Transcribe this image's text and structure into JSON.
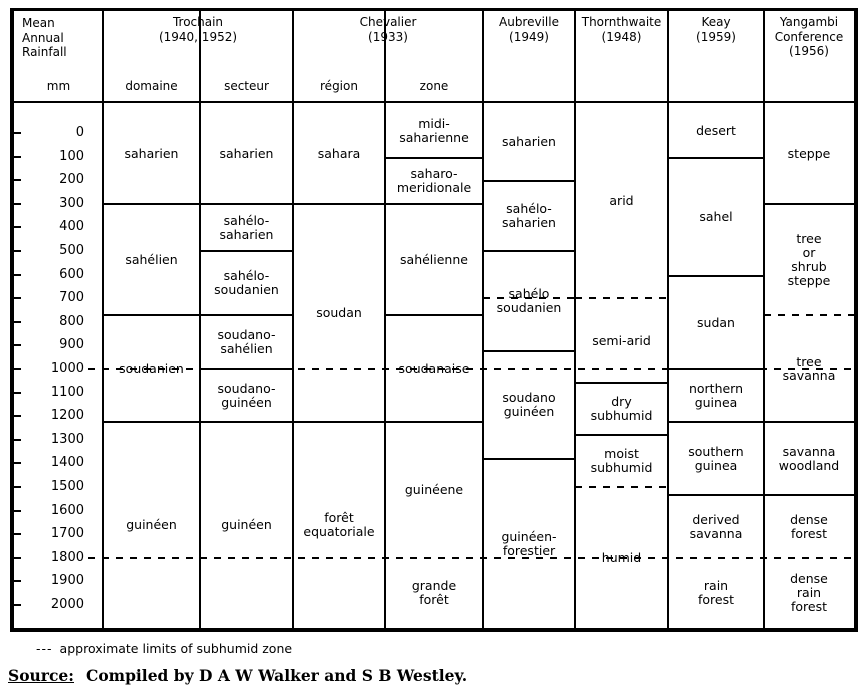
{
  "footer": {
    "legend_marker": "---",
    "legend_text": "approximate limits of subhumid zone",
    "source_label": "Source:",
    "source_text": "Compiled by D A W Walker and S B Westley."
  },
  "colors": {
    "ink": "#000000",
    "paper": "#ffffff"
  },
  "chart_data": {
    "type": "table",
    "title": "",
    "axis": {
      "title_lines": [
        "Mean",
        "Annual",
        "Rainfall"
      ],
      "unit": "mm",
      "range_mm": [
        0,
        2000
      ],
      "ticks_mm": [
        0,
        100,
        200,
        300,
        400,
        500,
        600,
        700,
        800,
        900,
        1000,
        1100,
        1200,
        1300,
        1400,
        1500,
        1600,
        1700,
        1800,
        1900,
        2000
      ]
    },
    "approx_dashed_limits_mm": [
      1000,
      1800
    ],
    "groups": [
      {
        "title_lines": [
          "Trochain",
          "(1940, 1952)"
        ],
        "subcolumns": [
          "domaine",
          "secteur"
        ]
      },
      {
        "title_lines": [
          "Chevalier",
          "(1933)"
        ],
        "subcolumns": [
          "région",
          "zone"
        ]
      },
      {
        "title_lines": [
          "Aubreville",
          "(1949)"
        ]
      },
      {
        "title_lines": [
          "Thornthwaite",
          "(1948)"
        ]
      },
      {
        "title_lines": [
          "Keay",
          "(1959)"
        ]
      },
      {
        "title_lines": [
          "Yangambi",
          "Conference",
          "(1956)"
        ]
      }
    ],
    "columns": [
      {
        "key": "trochain-domaine",
        "segments": [
          {
            "from": 0,
            "to": 300,
            "label": "saharien"
          },
          {
            "from": 300,
            "to": 770,
            "label": "sahélien"
          },
          {
            "from": 770,
            "to": 1225,
            "label": "soudanien"
          },
          {
            "from": 1225,
            "to": null,
            "label": "guinéen"
          }
        ]
      },
      {
        "key": "trochain-secteur",
        "segments": [
          {
            "from": 0,
            "to": 300,
            "label": "saharien"
          },
          {
            "from": 300,
            "to": 500,
            "label": "sahélo-\nsaharien"
          },
          {
            "from": 500,
            "to": 770,
            "label": "sahélo-\nsoudanien"
          },
          {
            "from": 770,
            "to": 1000,
            "label": "soudano-\nsahélien"
          },
          {
            "from": 1000,
            "to": 1225,
            "label": "soudano-\nguinéen"
          },
          {
            "from": 1225,
            "to": null,
            "label": "guinéen"
          }
        ]
      },
      {
        "key": "chevalier-region",
        "segments": [
          {
            "from": 0,
            "to": 300,
            "label": "sahara"
          },
          {
            "from": 300,
            "to": 1225,
            "label": "soudan"
          },
          {
            "from": 1225,
            "to": null,
            "label": "forêt\nequatoriale"
          }
        ]
      },
      {
        "key": "chevalier-zone",
        "segments": [
          {
            "from": 0,
            "to": 105,
            "label": "midi-\nsaharienne"
          },
          {
            "from": 105,
            "to": 300,
            "label": "saharo-\nmeridionale"
          },
          {
            "from": 300,
            "to": 770,
            "label": "sahélienne"
          },
          {
            "from": 770,
            "to": 1225,
            "label": "soudanaise"
          },
          {
            "from": 1225,
            "to": 1800,
            "label": "guinéene"
          },
          {
            "from": 1800,
            "to": null,
            "label": "grande\nforêt",
            "boundary": "none"
          }
        ]
      },
      {
        "key": "aubreville",
        "extra_dashed_mm": [
          700
        ],
        "segments": [
          {
            "from": 0,
            "to": 205,
            "label": "saharien"
          },
          {
            "from": 205,
            "to": 500,
            "label": "sahélo-\nsaharien"
          },
          {
            "from": 500,
            "to": 925,
            "label": "sahélo\nsoudanien"
          },
          {
            "from": 925,
            "to": 1380,
            "label": "soudano\nguinéen"
          },
          {
            "from": 1380,
            "to": null,
            "label": "guinéen-\nforestier"
          }
        ]
      },
      {
        "key": "thornthwaite",
        "segments": [
          {
            "from": 0,
            "to": 700,
            "label": "arid"
          },
          {
            "from": 700,
            "to": 1060,
            "label": "semi-arid",
            "boundary": "dashed"
          },
          {
            "from": 1060,
            "to": 1280,
            "label": "dry\nsubhumid"
          },
          {
            "from": 1280,
            "to": 1500,
            "label": "moist\nsubhumid"
          },
          {
            "from": 1500,
            "to": null,
            "label": "humid",
            "boundary": "dashed"
          }
        ]
      },
      {
        "key": "keay",
        "segments": [
          {
            "from": 0,
            "to": 105,
            "label": "desert"
          },
          {
            "from": 105,
            "to": 605,
            "label": "sahel"
          },
          {
            "from": 605,
            "to": 1000,
            "label": "sudan"
          },
          {
            "from": 1000,
            "to": 1225,
            "label": "northern\nguinea"
          },
          {
            "from": 1225,
            "to": 1535,
            "label": "southern\nguinea"
          },
          {
            "from": 1535,
            "to": 1800,
            "label": "derived\nsavanna"
          },
          {
            "from": 1800,
            "to": null,
            "label": "rain\nforest",
            "boundary": "none"
          }
        ]
      },
      {
        "key": "yangambi",
        "segments": [
          {
            "from": 0,
            "to": 300,
            "label": "steppe"
          },
          {
            "from": 300,
            "to": 770,
            "label": "tree\nor\nshrub\nsteppe"
          },
          {
            "from": 770,
            "to": 1225,
            "label": "tree\nsavanna",
            "boundary": "dashed"
          },
          {
            "from": 1225,
            "to": 1535,
            "label": "savanna\nwoodland"
          },
          {
            "from": 1535,
            "to": 1800,
            "label": "dense\nforest"
          },
          {
            "from": 1800,
            "to": null,
            "label": "dense\nrain\nforest",
            "boundary": "none"
          }
        ]
      }
    ]
  }
}
